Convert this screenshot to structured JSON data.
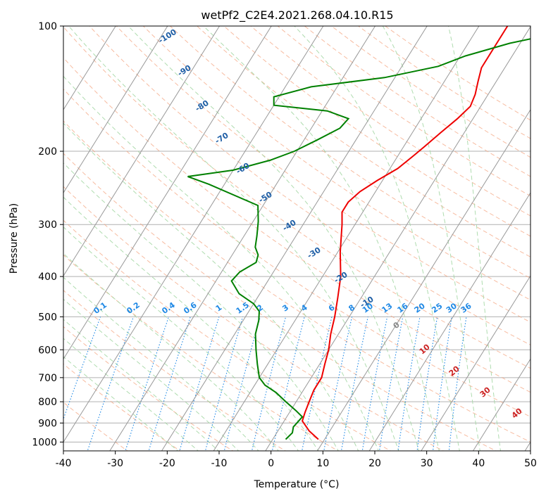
{
  "chart_data": {
    "type": "line",
    "title": "wetPf2_C2E4.2021.268.04.10.R15",
    "xlabel": "Temperature (°C)",
    "ylabel": "Pressure (hPa)",
    "xlim": [
      -40,
      50
    ],
    "ylim": [
      1050,
      100
    ],
    "y_scale": "log",
    "grid": true,
    "x_ticks": [
      -40,
      -30,
      -20,
      -10,
      0,
      10,
      20,
      30,
      40,
      50
    ],
    "y_ticks": [
      100,
      200,
      300,
      400,
      500,
      600,
      700,
      800,
      900,
      1000
    ],
    "colors": {
      "temperature": "#ee0000",
      "dewpoint": "#008000",
      "isotherm": "#999999",
      "dry_adiabat": "#f4a582",
      "moist_adiabat": "#a6d8a6",
      "mixing_ratio": "#1e88e5",
      "isotherm_label": "#1f5fa6",
      "moist_label": "#cc2222"
    },
    "isotherm_labels": [
      "-100",
      "-90",
      "-80",
      "-70",
      "-60",
      "-50",
      "-40",
      "-30",
      "-20",
      "-10"
    ],
    "mixing_ratio_labels": [
      "0.1",
      "0.2",
      "0.4",
      "0.6",
      "1",
      "1.5",
      "2",
      "3",
      "4",
      "6",
      "8",
      "10",
      "13",
      "16",
      "20",
      "25",
      "30",
      "36"
    ],
    "moist_labels": [
      "0",
      "10",
      "20",
      "30",
      "40"
    ],
    "series": [
      {
        "name": "",
        "role": "temperature",
        "points": [
          [
            8.8,
            985
          ],
          [
            6.0,
            940
          ],
          [
            3.5,
            890
          ],
          [
            3.0,
            850
          ],
          [
            2.5,
            800
          ],
          [
            2.0,
            750
          ],
          [
            2.0,
            700
          ],
          [
            1.0,
            650
          ],
          [
            0.0,
            600
          ],
          [
            -1.5,
            550
          ],
          [
            -2.8,
            500
          ],
          [
            -4.5,
            450
          ],
          [
            -6.5,
            400
          ],
          [
            -9.5,
            350
          ],
          [
            -12.5,
            300
          ],
          [
            -14.0,
            280
          ],
          [
            -14.0,
            265
          ],
          [
            -13.0,
            250
          ],
          [
            -11.0,
            235
          ],
          [
            -8.5,
            220
          ],
          [
            -7.0,
            205
          ],
          [
            -6.0,
            195
          ],
          [
            -4.5,
            180
          ],
          [
            -3.0,
            167
          ],
          [
            -2.0,
            156
          ],
          [
            -2.5,
            146
          ],
          [
            -3.5,
            136
          ],
          [
            -4.5,
            126
          ],
          [
            -4.5,
            118
          ],
          [
            -4.5,
            110
          ],
          [
            -4.5,
            100
          ]
        ]
      },
      {
        "name": "",
        "role": "dewpoint",
        "points": [
          [
            2.5,
            985
          ],
          [
            3.0,
            950
          ],
          [
            2.5,
            920
          ],
          [
            3.0,
            870
          ],
          [
            1.0,
            840
          ],
          [
            -2.0,
            800
          ],
          [
            -5.0,
            760
          ],
          [
            -8.0,
            730
          ],
          [
            -10.0,
            700
          ],
          [
            -12.0,
            650
          ],
          [
            -14.0,
            600
          ],
          [
            -16.0,
            550
          ],
          [
            -17.0,
            510
          ],
          [
            -18.0,
            485
          ],
          [
            -20.0,
            465
          ],
          [
            -24.0,
            440
          ],
          [
            -27.0,
            410
          ],
          [
            -26.5,
            390
          ],
          [
            -24.5,
            370
          ],
          [
            -25.0,
            355
          ],
          [
            -26.5,
            340
          ],
          [
            -27.5,
            320
          ],
          [
            -29.0,
            295
          ],
          [
            -31.0,
            270
          ],
          [
            -43.0,
            240
          ],
          [
            -48.0,
            230
          ],
          [
            -40.0,
            222
          ],
          [
            -34.0,
            210
          ],
          [
            -30.5,
            200
          ],
          [
            -27.5,
            188
          ],
          [
            -24.5,
            176
          ],
          [
            -24.0,
            167
          ],
          [
            -29.0,
            160
          ],
          [
            -40.0,
            155
          ],
          [
            -41.0,
            148
          ],
          [
            -35.0,
            140
          ],
          [
            -22.0,
            133
          ],
          [
            -13.0,
            125
          ],
          [
            -9.0,
            118
          ],
          [
            -2.0,
            110
          ],
          [
            6.0,
            104
          ],
          [
            8.0,
            100
          ]
        ]
      }
    ]
  }
}
